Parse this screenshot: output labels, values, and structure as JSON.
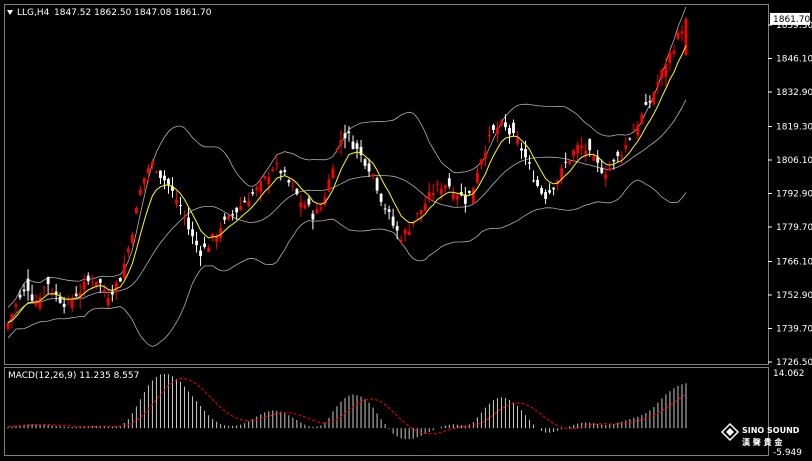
{
  "header": {
    "symbol": "LLG,H4",
    "ohlc": "1847.52 1862.50 1847.08 1861.70"
  },
  "macd": {
    "label": "MACD(12,26,9) 11.235 8.557",
    "axis_top": "14.062",
    "axis_bottom": "-5.949"
  },
  "watermark": {
    "line1": "SINO SOUND",
    "line2": "漢 聲 貴 金"
  },
  "colors": {
    "background": "#000000",
    "bull_candle": "#ff0000",
    "bear_candle": "#ffffff",
    "ma": "#ffff00",
    "bollinger": "#b0b0b0",
    "macd_hist": "#c8c8c8",
    "macd_signal": "#ff0000",
    "current_price_box": "#ffffff"
  },
  "chart_data": {
    "type": "candlestick",
    "price_axis_ticks": [
      "1859.30",
      "1846.10",
      "1832.90",
      "1819.30",
      "1806.10",
      "1792.90",
      "1779.70",
      "1766.10",
      "1752.90",
      "1739.70",
      "1726.50"
    ],
    "ylim": [
      1726.5,
      1866.0
    ],
    "current_price": "1861.70",
    "price_path": [
      1742,
      1748,
      1752,
      1756,
      1750,
      1754,
      1758,
      1753,
      1751,
      1749,
      1753,
      1755,
      1758,
      1760,
      1757,
      1753,
      1756,
      1760,
      1770,
      1782,
      1795,
      1803,
      1805,
      1800,
      1797,
      1792,
      1788,
      1780,
      1774,
      1770,
      1772,
      1776,
      1780,
      1782,
      1785,
      1788,
      1791,
      1793,
      1796,
      1800,
      1804,
      1802,
      1798,
      1794,
      1790,
      1788,
      1784,
      1787,
      1795,
      1806,
      1814,
      1817,
      1812,
      1808,
      1805,
      1800,
      1792,
      1786,
      1780,
      1776,
      1778,
      1782,
      1786,
      1790,
      1794,
      1796,
      1797,
      1795,
      1792,
      1790,
      1796,
      1806,
      1812,
      1817,
      1820,
      1818,
      1815,
      1812,
      1806,
      1800,
      1794,
      1792,
      1796,
      1800,
      1805,
      1809,
      1812,
      1810,
      1806,
      1803,
      1802,
      1804,
      1808,
      1812,
      1818,
      1822,
      1826,
      1832,
      1838,
      1845,
      1850,
      1856,
      1861.7
    ],
    "macd_ylim": [
      -5.949,
      14.062
    ],
    "macd_hist": [
      0.3,
      0.5,
      0.8,
      1.0,
      1.0,
      0.9,
      0.8,
      0.6,
      0.4,
      0.3,
      0.3,
      0.4,
      0.5,
      0.6,
      0.5,
      0.4,
      0.4,
      0.6,
      2.0,
      4.5,
      7.5,
      10.5,
      12.5,
      13.5,
      13.6,
      12.8,
      11.5,
      9.5,
      7.5,
      5.5,
      3.5,
      2.0,
      1.0,
      0.6,
      0.6,
      0.9,
      1.5,
      2.5,
      3.5,
      4.2,
      4.5,
      4.2,
      3.5,
      2.5,
      1.5,
      0.6,
      0.3,
      0.6,
      1.8,
      4.5,
      6.5,
      8.0,
      8.5,
      8.0,
      7.0,
      5.0,
      2.5,
      0.5,
      -1.5,
      -2.5,
      -2.8,
      -2.6,
      -2.0,
      -1.2,
      -0.5,
      0.3,
      0.8,
      1.0,
      0.8,
      0.6,
      1.5,
      3.5,
      5.5,
      7.0,
      7.8,
      7.5,
      6.5,
      5.0,
      3.0,
      1.0,
      -0.5,
      -1.2,
      -1.0,
      -0.5,
      0.2,
      0.8,
      1.3,
      1.5,
      1.3,
      1.0,
      0.8,
      1.0,
      1.5,
      2.0,
      2.5,
      3.0,
      3.8,
      5.0,
      6.8,
      8.5,
      9.8,
      10.8,
      11.235
    ],
    "macd_signal": [
      0.5,
      0.5,
      0.6,
      0.7,
      0.8,
      0.9,
      0.9,
      0.8,
      0.7,
      0.6,
      0.5,
      0.4,
      0.4,
      0.4,
      0.5,
      0.5,
      0.5,
      0.5,
      0.8,
      1.6,
      2.8,
      4.5,
      6.5,
      8.5,
      10.5,
      11.8,
      12.5,
      12.3,
      11.5,
      10.2,
      8.5,
      6.8,
      5.2,
      3.8,
      2.8,
      2.1,
      1.8,
      1.9,
      2.3,
      2.9,
      3.4,
      3.8,
      3.9,
      3.7,
      3.2,
      2.6,
      1.9,
      1.4,
      1.3,
      1.8,
      2.8,
      4.2,
      5.5,
      6.6,
      7.2,
      7.3,
      6.8,
      5.6,
      4.0,
      2.4,
      0.9,
      -0.3,
      -1.0,
      -1.4,
      -1.4,
      -1.1,
      -0.6,
      -0.1,
      0.3,
      0.5,
      0.6,
      1.1,
      2.1,
      3.3,
      4.6,
      5.6,
      6.2,
      6.3,
      5.9,
      5.0,
      3.7,
      2.4,
      1.2,
      0.4,
      -0.1,
      -0.1,
      0.2,
      0.6,
      0.9,
      1.1,
      1.1,
      1.0,
      1.1,
      1.3,
      1.6,
      2.0,
      2.5,
      3.1,
      4.0,
      5.0,
      6.2,
      7.4,
      8.557
    ]
  }
}
